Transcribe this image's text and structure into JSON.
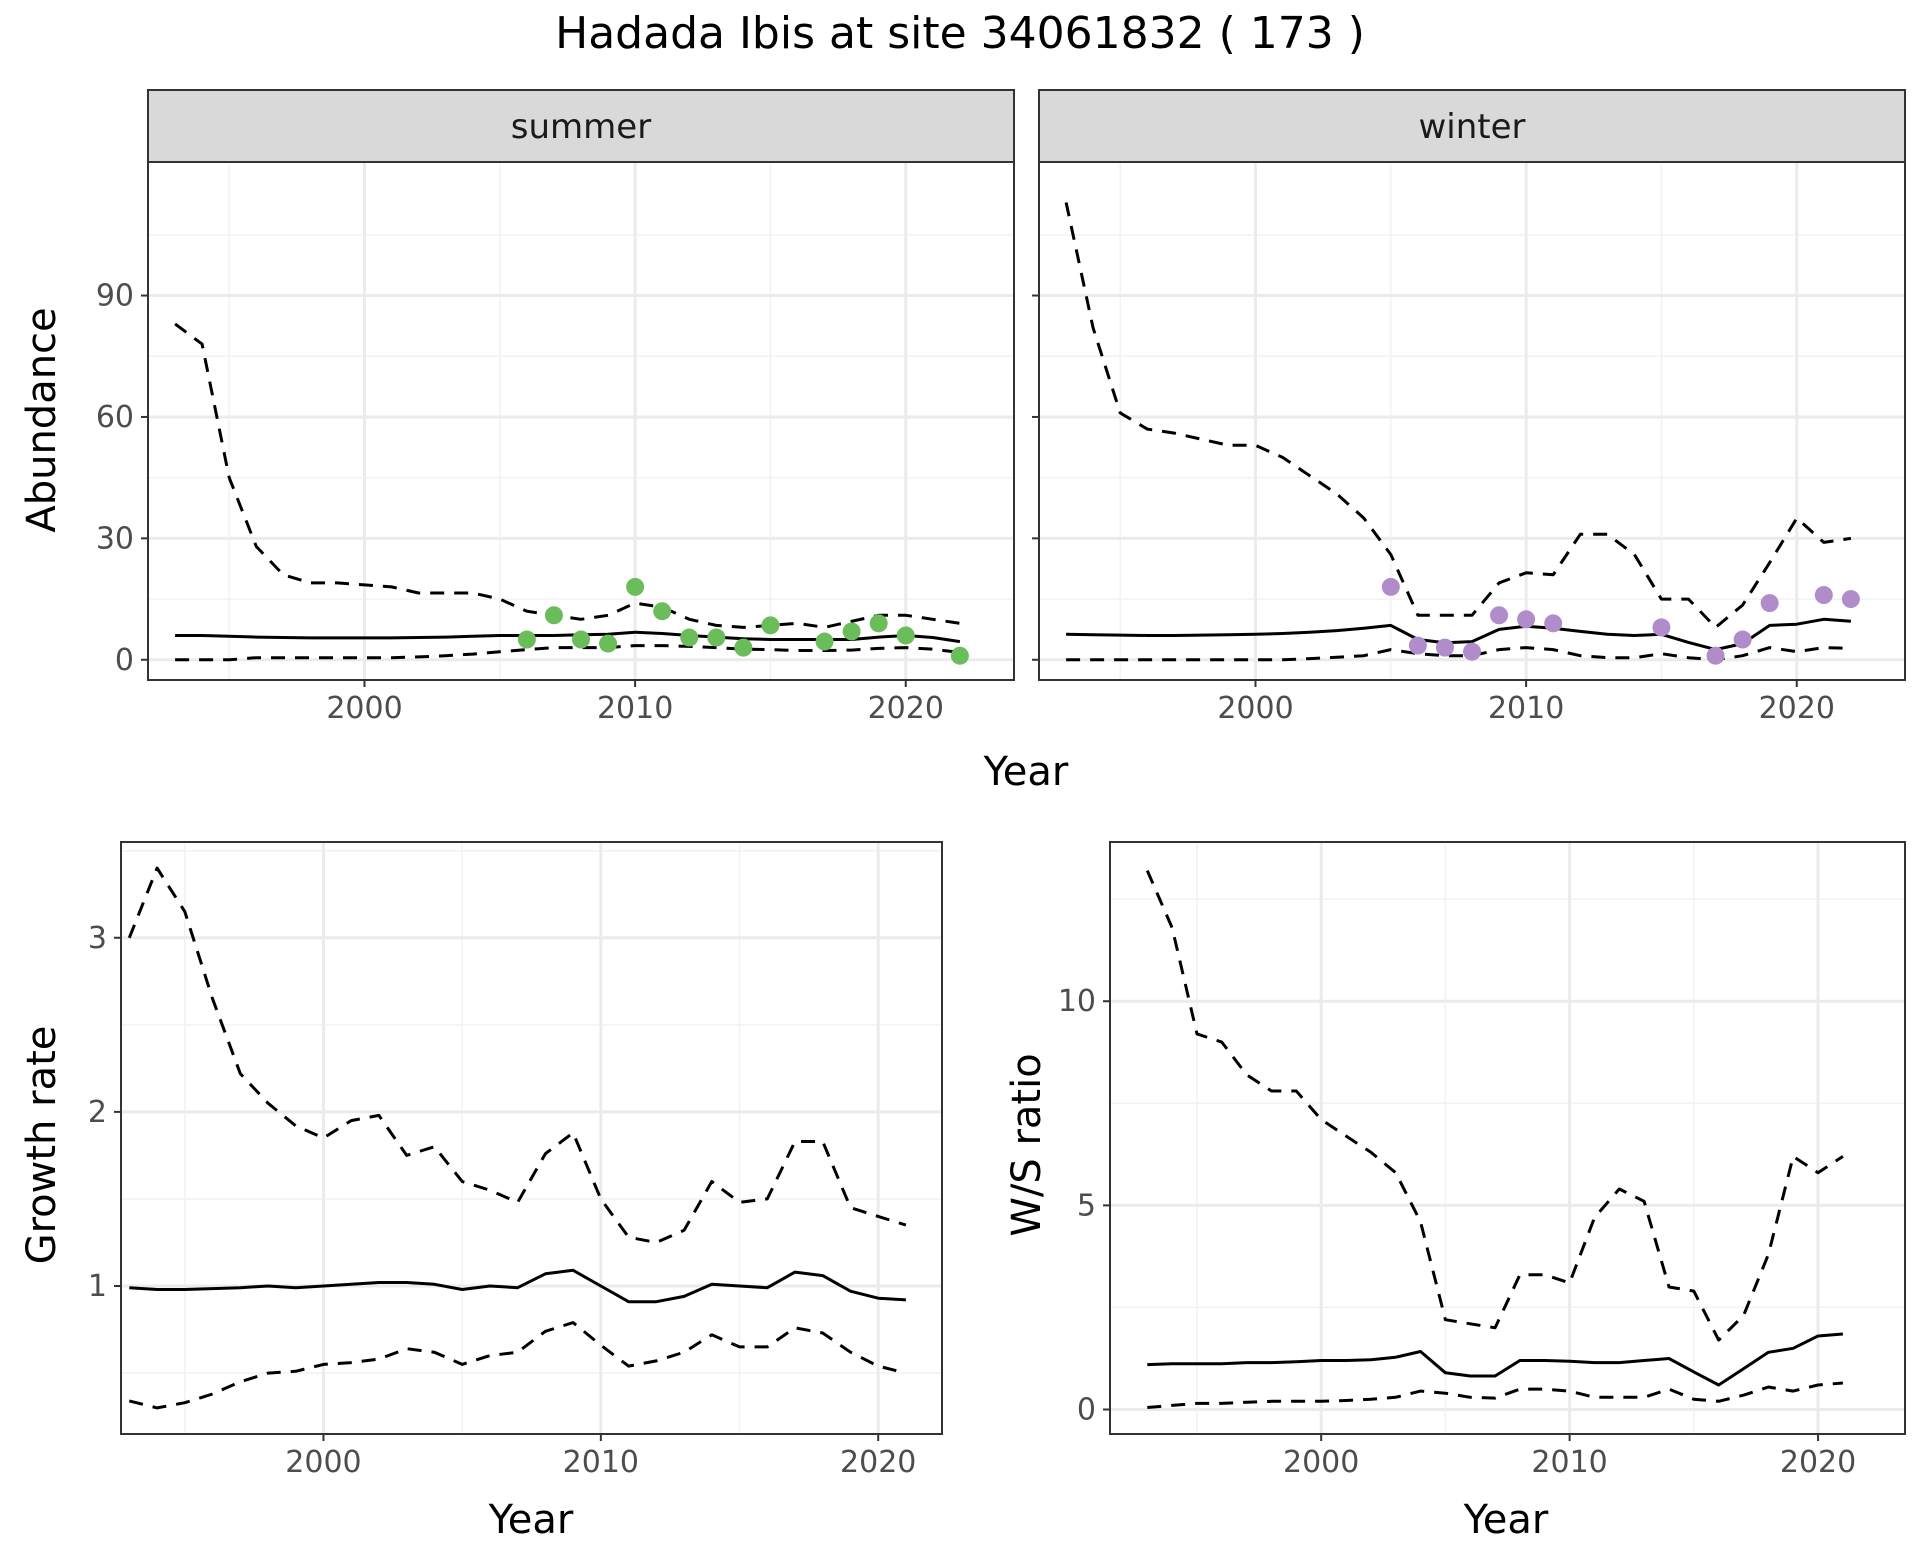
{
  "figure": {
    "title": "Hadada Ibis at site 34061832 ( 173 )"
  },
  "colors": {
    "summer_points": "#6abd5a",
    "winter_points": "#b08ccb",
    "line": "#000000",
    "grid": "#ebebeb",
    "strip": "#d9d9d9"
  },
  "chart_data": [
    {
      "id": "summer",
      "type": "line",
      "strip": "summer",
      "xlabel": "Year",
      "ylabel": "Abundance",
      "xlim": [
        1992,
        2024
      ],
      "ylim": [
        -5,
        123
      ],
      "xticks": [
        2000,
        2010,
        2020
      ],
      "yticks": [
        0,
        30,
        60,
        90
      ],
      "grid": true,
      "x": [
        1993,
        1994,
        1995,
        1996,
        1997,
        1998,
        1999,
        2000,
        2001,
        2002,
        2003,
        2004,
        2005,
        2006,
        2007,
        2008,
        2009,
        2010,
        2011,
        2012,
        2013,
        2014,
        2015,
        2016,
        2017,
        2018,
        2019,
        2020,
        2021,
        2022
      ],
      "series": [
        {
          "role": "mean",
          "style": "solid",
          "values": [
            6,
            6,
            5.8,
            5.6,
            5.5,
            5.4,
            5.4,
            5.4,
            5.4,
            5.5,
            5.6,
            5.8,
            6,
            6,
            6,
            6.2,
            6.3,
            6.8,
            6.5,
            6,
            5.6,
            5.2,
            5,
            5,
            5,
            5,
            5.6,
            6,
            5.5,
            4.5
          ]
        },
        {
          "role": "upper",
          "style": "dashed",
          "values": [
            83,
            78,
            45,
            28,
            21,
            19,
            19,
            18.5,
            18,
            16.5,
            16.5,
            16.5,
            15,
            12,
            11,
            10,
            11,
            14,
            13,
            10,
            8.5,
            8,
            8.5,
            9,
            8,
            9.5,
            11,
            11,
            10,
            9
          ]
        },
        {
          "role": "lower",
          "style": "dashed",
          "values": [
            0,
            0,
            0,
            0.5,
            0.5,
            0.5,
            0.5,
            0.5,
            0.5,
            0.7,
            1,
            1.4,
            2,
            2.5,
            3,
            3,
            3,
            3.5,
            3.5,
            3.3,
            3,
            2.6,
            2.5,
            2.3,
            2.3,
            2.4,
            2.8,
            3,
            2.6,
            1.8
          ]
        }
      ],
      "points": {
        "x": [
          2006,
          2007,
          2008,
          2009,
          2010,
          2011,
          2012,
          2013,
          2014,
          2015,
          2017,
          2018,
          2019,
          2020,
          2022
        ],
        "y": [
          5,
          11,
          5,
          4,
          18,
          12,
          5.5,
          5.5,
          3,
          8.5,
          4.5,
          7,
          9,
          6,
          1
        ]
      }
    },
    {
      "id": "winter",
      "type": "line",
      "strip": "winter",
      "xlabel": "Year",
      "ylabel": "Abundance",
      "xlim": [
        1992,
        2024
      ],
      "ylim": [
        -5,
        123
      ],
      "xticks": [
        2000,
        2010,
        2020
      ],
      "yticks": [
        0,
        30,
        60,
        90
      ],
      "grid": true,
      "x": [
        1993,
        1994,
        1995,
        1996,
        1997,
        1998,
        1999,
        2000,
        2001,
        2002,
        2003,
        2004,
        2005,
        2006,
        2007,
        2008,
        2009,
        2010,
        2011,
        2012,
        2013,
        2014,
        2015,
        2016,
        2017,
        2018,
        2019,
        2020,
        2021,
        2022
      ],
      "series": [
        {
          "role": "mean",
          "style": "solid",
          "values": [
            6.3,
            6.2,
            6.1,
            6,
            6,
            6.1,
            6.2,
            6.3,
            6.5,
            6.8,
            7.2,
            7.8,
            8.5,
            5,
            4.2,
            4.5,
            7.5,
            8.3,
            7.8,
            7,
            6.3,
            6,
            6.3,
            4.3,
            2.5,
            4,
            8.5,
            8.8,
            10,
            9.5
          ]
        },
        {
          "role": "upper",
          "style": "dashed",
          "values": [
            113,
            82,
            61,
            57,
            56,
            54.5,
            53,
            53,
            50,
            45.5,
            41,
            35,
            26,
            11,
            11,
            11,
            19,
            21.5,
            21,
            31,
            31,
            26,
            15,
            15,
            8,
            13.5,
            24,
            35,
            29,
            30
          ]
        },
        {
          "role": "lower",
          "style": "dashed",
          "values": [
            0,
            0,
            0,
            0,
            0,
            0,
            0,
            0,
            0,
            0.3,
            0.6,
            1,
            2.5,
            1.5,
            1,
            1,
            2.5,
            3,
            2.5,
            1,
            0.5,
            0.5,
            1.5,
            0.5,
            0,
            1,
            3,
            2,
            3,
            2.8
          ]
        }
      ],
      "points": {
        "x": [
          2005,
          2006,
          2007,
          2008,
          2009,
          2010,
          2011,
          2015,
          2017,
          2018,
          2019,
          2021,
          2022
        ],
        "y": [
          18,
          3.5,
          3,
          2,
          11,
          10,
          9,
          8,
          1,
          5,
          14,
          16,
          15
        ]
      }
    },
    {
      "id": "growth",
      "type": "line",
      "xlabel": "Year",
      "ylabel": "Growth rate",
      "xlim": [
        1992.7,
        2022.3
      ],
      "ylim": [
        0.15,
        3.55
      ],
      "xticks": [
        2000,
        2010,
        2020
      ],
      "yticks": [
        1,
        2,
        3
      ],
      "grid": true,
      "x": [
        1993,
        1994,
        1995,
        1996,
        1997,
        1998,
        1999,
        2000,
        2001,
        2002,
        2003,
        2004,
        2005,
        2006,
        2007,
        2008,
        2009,
        2010,
        2011,
        2012,
        2013,
        2014,
        2015,
        2016,
        2017,
        2018,
        2019,
        2020,
        2021
      ],
      "series": [
        {
          "role": "mean",
          "style": "solid",
          "values": [
            0.99,
            0.98,
            0.98,
            0.985,
            0.99,
            1,
            0.99,
            1,
            1.01,
            1.02,
            1.02,
            1.01,
            0.98,
            1,
            0.99,
            1.07,
            1.09,
            1,
            0.91,
            0.91,
            0.94,
            1.01,
            1,
            0.99,
            1.08,
            1.06,
            0.97,
            0.93,
            0.92
          ]
        },
        {
          "role": "upper",
          "style": "dashed",
          "values": [
            3,
            3.4,
            3.15,
            2.65,
            2.22,
            2.05,
            1.92,
            1.85,
            1.95,
            1.98,
            1.75,
            1.8,
            1.6,
            1.55,
            1.48,
            1.76,
            1.88,
            1.5,
            1.28,
            1.25,
            1.32,
            1.6,
            1.48,
            1.5,
            1.83,
            1.83,
            1.45,
            1.4,
            1.35
          ]
        },
        {
          "role": "lower",
          "style": "dashed",
          "values": [
            0.34,
            0.3,
            0.33,
            0.38,
            0.45,
            0.5,
            0.51,
            0.55,
            0.56,
            0.58,
            0.64,
            0.62,
            0.55,
            0.6,
            0.62,
            0.74,
            0.79,
            0.66,
            0.54,
            0.57,
            0.62,
            0.72,
            0.65,
            0.65,
            0.76,
            0.73,
            0.62,
            0.54,
            0.5
          ]
        }
      ]
    },
    {
      "id": "ws_ratio",
      "type": "line",
      "xlabel": "Year",
      "ylabel": "W/S ratio",
      "xlim": [
        1991.5,
        2023.5
      ],
      "ylim": [
        -0.6,
        13.9
      ],
      "xticks": [
        2000,
        2010,
        2020
      ],
      "yticks": [
        0,
        5,
        10
      ],
      "grid": true,
      "x": [
        1993,
        1994,
        1995,
        1996,
        1997,
        1998,
        1999,
        2000,
        2001,
        2002,
        2003,
        2004,
        2005,
        2006,
        2007,
        2008,
        2009,
        2010,
        2011,
        2012,
        2013,
        2014,
        2015,
        2016,
        2017,
        2018,
        2019,
        2020,
        2021
      ],
      "series": [
        {
          "role": "mean",
          "style": "solid",
          "values": [
            1.1,
            1.12,
            1.12,
            1.12,
            1.15,
            1.15,
            1.17,
            1.2,
            1.2,
            1.22,
            1.28,
            1.42,
            0.9,
            0.82,
            0.82,
            1.2,
            1.2,
            1.18,
            1.15,
            1.15,
            1.2,
            1.25,
            0.92,
            0.6,
            1,
            1.4,
            1.5,
            1.8,
            1.85
          ]
        },
        {
          "role": "upper",
          "style": "dashed",
          "values": [
            13.2,
            11.8,
            9.2,
            9,
            8.2,
            7.8,
            7.8,
            7.1,
            6.7,
            6.3,
            5.8,
            4.6,
            2.2,
            2.1,
            2,
            3.3,
            3.3,
            3.1,
            4.7,
            5.4,
            5.1,
            3,
            2.9,
            1.7,
            2.3,
            3.8,
            6.2,
            5.8,
            6.2
          ]
        },
        {
          "role": "lower",
          "style": "dashed",
          "values": [
            0.05,
            0.1,
            0.15,
            0.15,
            0.18,
            0.2,
            0.2,
            0.2,
            0.22,
            0.25,
            0.3,
            0.45,
            0.4,
            0.3,
            0.28,
            0.5,
            0.5,
            0.45,
            0.3,
            0.3,
            0.3,
            0.5,
            0.25,
            0.2,
            0.35,
            0.55,
            0.45,
            0.6,
            0.65
          ]
        }
      ]
    }
  ]
}
